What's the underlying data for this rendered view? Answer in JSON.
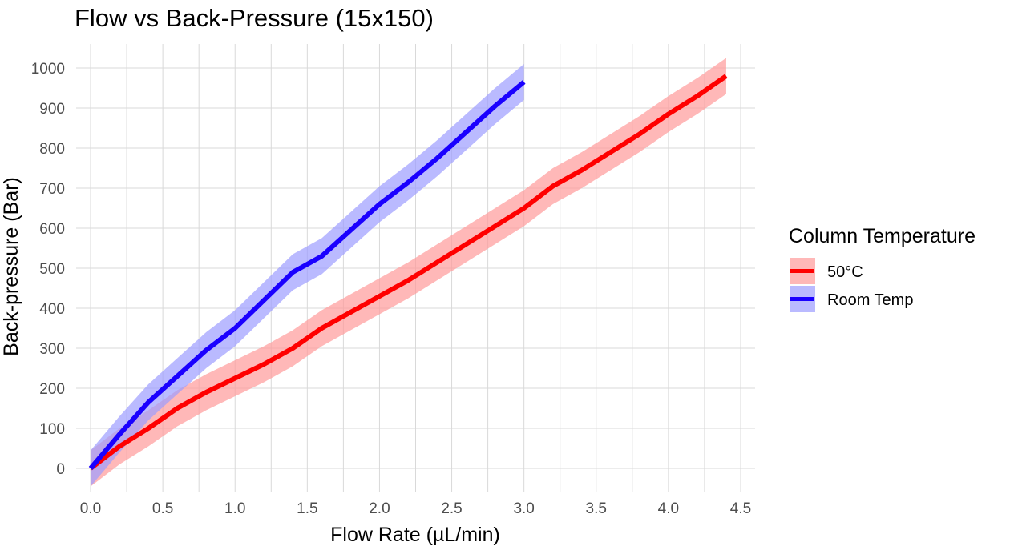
{
  "chart_data": {
    "type": "line",
    "title": "Flow vs Back-Pressure (15x150)",
    "xlabel": "Flow Rate (µL/min)",
    "ylabel": "Back-pressure (Bar)",
    "xlim": [
      -0.1,
      4.6
    ],
    "ylim": [
      -60,
      1060
    ],
    "x_ticks": [
      0.0,
      0.5,
      1.0,
      1.5,
      2.0,
      2.5,
      3.0,
      3.5,
      4.0,
      4.5
    ],
    "x_tick_labels": [
      "0.0",
      "0.5",
      "1.0",
      "1.5",
      "2.0",
      "2.5",
      "3.0",
      "3.5",
      "4.0",
      "4.5"
    ],
    "y_ticks": [
      0,
      100,
      200,
      300,
      400,
      500,
      600,
      700,
      800,
      900,
      1000
    ],
    "y_tick_labels": [
      "0",
      "100",
      "200",
      "300",
      "400",
      "500",
      "600",
      "700",
      "800",
      "900",
      "1000"
    ],
    "grid": true,
    "legend": {
      "title": "Column Temperature",
      "position": "right"
    },
    "series": [
      {
        "name": "50°C",
        "color": "#ff0000",
        "ribbon_color": "#ff9a9a",
        "ribbon_half_width": 45,
        "points": [
          [
            0.0,
            0
          ],
          [
            0.2,
            55
          ],
          [
            0.4,
            100
          ],
          [
            0.6,
            150
          ],
          [
            0.8,
            190
          ],
          [
            1.0,
            225
          ],
          [
            1.2,
            260
          ],
          [
            1.4,
            300
          ],
          [
            1.6,
            350
          ],
          [
            1.8,
            390
          ],
          [
            2.0,
            430
          ],
          [
            2.2,
            470
          ],
          [
            2.4,
            515
          ],
          [
            2.6,
            560
          ],
          [
            2.8,
            605
          ],
          [
            3.0,
            650
          ],
          [
            3.2,
            705
          ],
          [
            3.4,
            745
          ],
          [
            3.6,
            790
          ],
          [
            3.8,
            835
          ],
          [
            4.0,
            885
          ],
          [
            4.2,
            930
          ],
          [
            4.4,
            980
          ]
        ]
      },
      {
        "name": "Room Temp",
        "color": "#1a00ff",
        "ribbon_color": "#9d9dff",
        "ribbon_half_width": 45,
        "points": [
          [
            0.0,
            0
          ],
          [
            0.2,
            85
          ],
          [
            0.4,
            165
          ],
          [
            0.6,
            230
          ],
          [
            0.8,
            295
          ],
          [
            1.0,
            350
          ],
          [
            1.2,
            420
          ],
          [
            1.4,
            490
          ],
          [
            1.6,
            530
          ],
          [
            1.8,
            595
          ],
          [
            2.0,
            660
          ],
          [
            2.2,
            715
          ],
          [
            2.4,
            775
          ],
          [
            2.6,
            840
          ],
          [
            2.8,
            905
          ],
          [
            3.0,
            965
          ]
        ]
      }
    ]
  }
}
